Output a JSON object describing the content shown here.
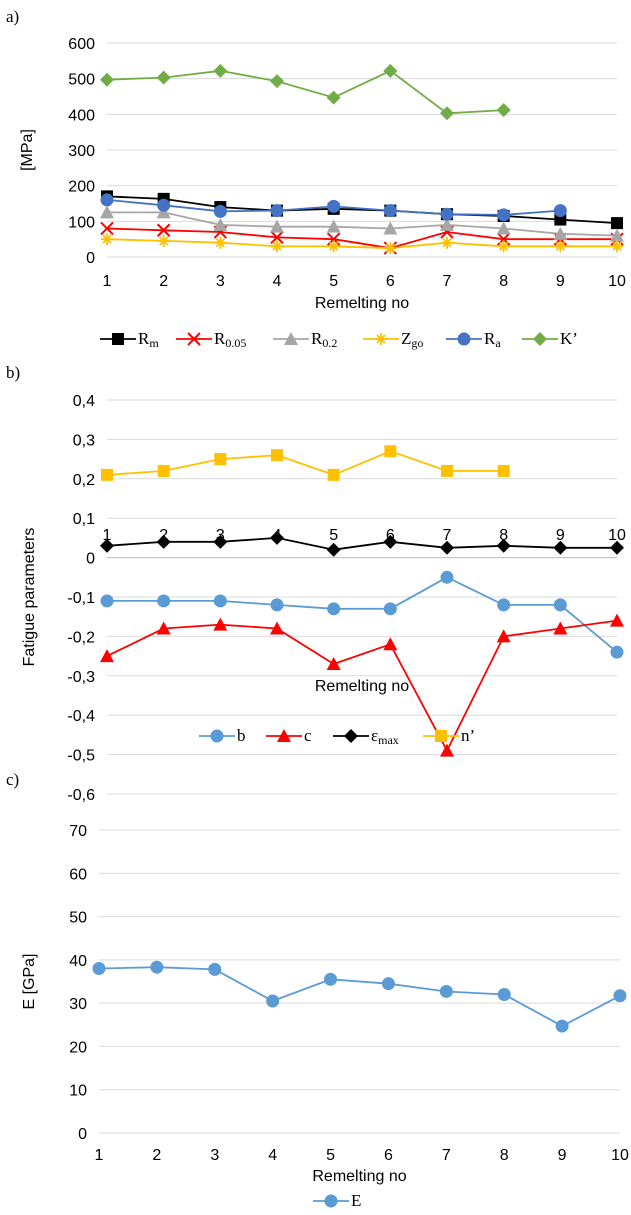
{
  "figure": {
    "panels": [
      "a)",
      "b)",
      "c)"
    ],
    "xlabel": "Remelting no"
  },
  "chart_data": [
    {
      "type": "line",
      "panel": "a)",
      "ylabel": "[MPa]",
      "x": [
        1,
        2,
        3,
        4,
        5,
        6,
        7,
        8,
        9,
        10
      ],
      "ylim": [
        0,
        600
      ],
      "yticks": [
        0,
        100,
        200,
        300,
        400,
        500,
        600
      ],
      "ytick_labels": [
        "0",
        "100",
        "200",
        "300",
        "400",
        "500",
        "600"
      ],
      "grid": "horizontal",
      "legend_position": "bottom",
      "series": [
        {
          "name": "R",
          "sub": "m",
          "color": "#000000",
          "marker": "square",
          "values": [
            170,
            163,
            140,
            130,
            135,
            130,
            120,
            115,
            105,
            95
          ]
        },
        {
          "name": "R",
          "sub": "0.05",
          "color": "#ff0000",
          "marker": "x",
          "values": [
            80,
            75,
            70,
            55,
            50,
            25,
            70,
            50,
            50,
            50
          ]
        },
        {
          "name": "R",
          "sub": "0.2",
          "color": "#a6a6a6",
          "marker": "triangle",
          "values": [
            125,
            125,
            90,
            85,
            85,
            80,
            90,
            80,
            65,
            60
          ]
        },
        {
          "name": "Z",
          "sub": "go",
          "color": "#ffc000",
          "marker": "star",
          "values": [
            50,
            45,
            40,
            30,
            30,
            25,
            40,
            30,
            30,
            30
          ]
        },
        {
          "name": "R",
          "sub": "a",
          "color": "#4472c4",
          "marker": "circle",
          "values": [
            160,
            145,
            128,
            130,
            142,
            130,
            120,
            118,
            130,
            null
          ]
        },
        {
          "name": "K’",
          "sub": "",
          "color": "#70ad47",
          "marker": "diamond",
          "values": [
            497,
            503,
            522,
            493,
            447,
            522,
            403,
            412,
            null,
            null
          ]
        }
      ]
    },
    {
      "type": "line",
      "panel": "b)",
      "ylabel": "Fatigue parameters",
      "x": [
        1,
        2,
        3,
        4,
        5,
        6,
        7,
        8,
        9,
        10
      ],
      "ylim": [
        -0.6,
        0.4
      ],
      "yticks": [
        -0.6,
        -0.5,
        -0.4,
        -0.3,
        -0.2,
        -0.1,
        0,
        0.1,
        0.2,
        0.3,
        0.4
      ],
      "ytick_labels": [
        "-0,6",
        "-0,5",
        "-0,4",
        "-0,3",
        "-0,2",
        "-0,1",
        "0",
        "0,1",
        "0,2",
        "0,3",
        "0,4"
      ],
      "grid": "horizontal",
      "legend_position": "bottom",
      "series": [
        {
          "name": "b",
          "sub": "",
          "color": "#5b9bd5",
          "marker": "circle",
          "values": [
            -0.11,
            -0.11,
            -0.11,
            -0.12,
            -0.13,
            -0.13,
            -0.05,
            -0.12,
            -0.12,
            -0.24
          ]
        },
        {
          "name": "c",
          "sub": "",
          "color": "#ff0000",
          "marker": "triangle",
          "values": [
            -0.25,
            -0.18,
            -0.17,
            -0.18,
            -0.27,
            -0.22,
            -0.49,
            -0.2,
            -0.18,
            -0.16
          ]
        },
        {
          "name": "ε",
          "sub": "max",
          "color": "#000000",
          "marker": "diamond",
          "values": [
            0.03,
            0.04,
            0.04,
            0.05,
            0.02,
            0.04,
            0.025,
            0.03,
            0.025,
            0.025
          ]
        },
        {
          "name": "n’",
          "sub": "",
          "color": "#ffc000",
          "marker": "square",
          "values": [
            0.21,
            0.22,
            0.25,
            0.26,
            0.21,
            0.27,
            0.22,
            0.22,
            null,
            null
          ]
        }
      ]
    },
    {
      "type": "line",
      "panel": "c)",
      "ylabel": "E [GPa]",
      "x": [
        1,
        2,
        3,
        4,
        5,
        6,
        7,
        8,
        9,
        10
      ],
      "ylim": [
        0,
        70
      ],
      "yticks": [
        0,
        10,
        20,
        30,
        40,
        50,
        60,
        70
      ],
      "ytick_labels": [
        "0",
        "10",
        "20",
        "30",
        "40",
        "50",
        "60",
        "70"
      ],
      "grid": "horizontal",
      "legend_position": "bottom",
      "series": [
        {
          "name": "E",
          "sub": "",
          "color": "#5b9bd5",
          "marker": "circle",
          "values": [
            38.0,
            38.3,
            37.8,
            30.5,
            35.5,
            34.5,
            32.7,
            32.0,
            24.7,
            31.7
          ]
        }
      ]
    }
  ]
}
